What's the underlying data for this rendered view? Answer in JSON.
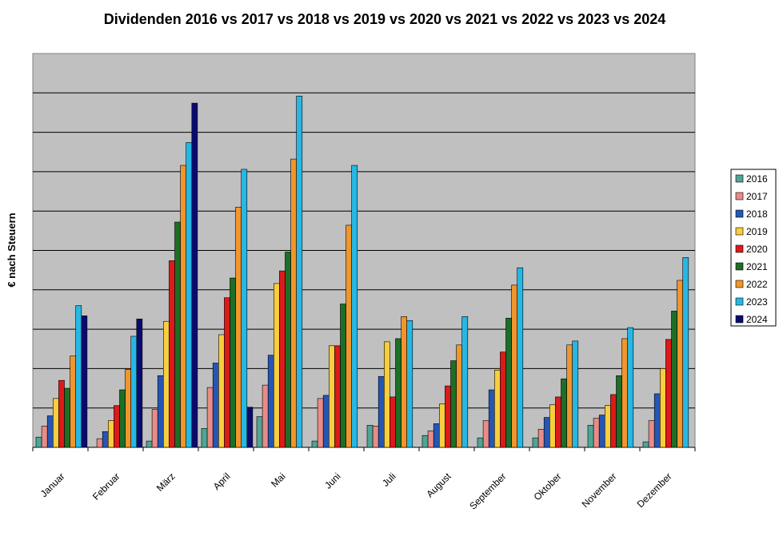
{
  "chart_data": {
    "type": "bar",
    "title": "Dividenden 2016 vs 2017 vs 2018 vs 2019 vs 2020 vs 2021 vs 2022 vs 2023 vs 2024",
    "xlabel": "",
    "ylabel": "€ nach Steuern",
    "ylim": [
      0,
      100
    ],
    "grid": true,
    "legend_position": "right",
    "categories": [
      "Januar",
      "Februar",
      "März",
      "April",
      "Mai",
      "Juni",
      "Juli",
      "August",
      "September",
      "Oktober",
      "November",
      "Dezember"
    ],
    "series": [
      {
        "name": "2016",
        "color": "#4FA596",
        "values": [
          2.6,
          0,
          1.6,
          4.8,
          7.8,
          1.6,
          5.6,
          3.0,
          2.4,
          2.4,
          5.6,
          1.4
        ]
      },
      {
        "name": "2017",
        "color": "#E88C88",
        "values": [
          5.4,
          2.2,
          9.6,
          15.2,
          15.8,
          12.4,
          5.4,
          4.2,
          6.8,
          4.6,
          7.4,
          6.8
        ]
      },
      {
        "name": "2018",
        "color": "#2556B6",
        "values": [
          8.0,
          4.0,
          18.2,
          21.4,
          23.4,
          13.2,
          18.0,
          6.0,
          14.6,
          7.6,
          8.2,
          13.6
        ]
      },
      {
        "name": "2019",
        "color": "#F6CE3E",
        "values": [
          12.4,
          6.8,
          32.0,
          28.6,
          41.6,
          25.8,
          26.8,
          11.0,
          19.6,
          10.8,
          10.6,
          20.0
        ]
      },
      {
        "name": "2020",
        "color": "#DD1A1A",
        "values": [
          17.0,
          10.6,
          47.4,
          38.0,
          44.8,
          25.8,
          12.8,
          15.6,
          24.2,
          12.8,
          13.4,
          27.4
        ]
      },
      {
        "name": "2021",
        "color": "#1D6E26",
        "values": [
          15.0,
          14.6,
          57.2,
          43.0,
          49.6,
          36.4,
          27.6,
          22.0,
          32.8,
          17.4,
          18.2,
          34.6
        ]
      },
      {
        "name": "2022",
        "color": "#F0962C",
        "values": [
          23.2,
          19.8,
          71.6,
          61.0,
          73.2,
          56.4,
          33.2,
          26.0,
          41.2,
          26.0,
          27.6,
          42.4
        ]
      },
      {
        "name": "2023",
        "color": "#27B7E4",
        "values": [
          36.0,
          28.2,
          77.4,
          70.6,
          89.2,
          71.6,
          32.2,
          33.2,
          45.6,
          27.0,
          30.4,
          48.2
        ]
      },
      {
        "name": "2024",
        "color": "#0A0A6E",
        "values": [
          33.4,
          32.6,
          87.4,
          10.2,
          0,
          0,
          0,
          0,
          0,
          0,
          0,
          0
        ]
      }
    ]
  }
}
